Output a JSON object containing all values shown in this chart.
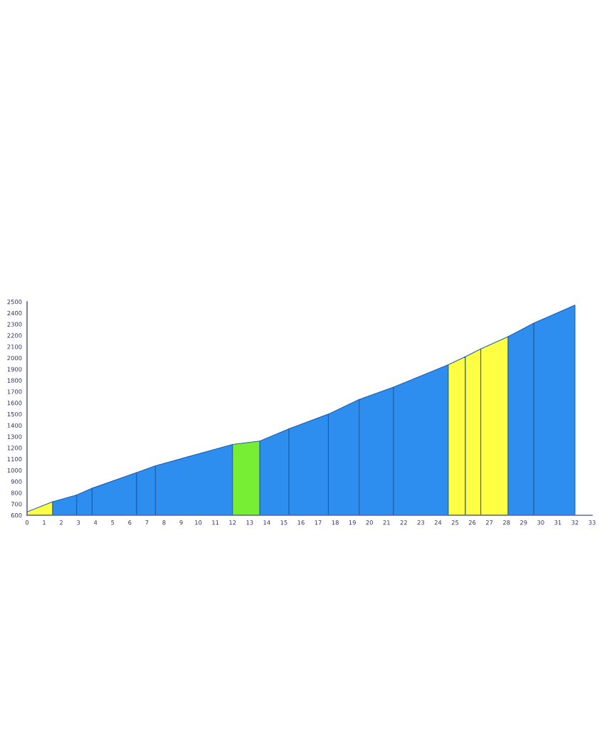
{
  "chart_data": {
    "type": "area",
    "xlim": [
      0,
      33
    ],
    "xticks": [
      0,
      1,
      2,
      3,
      4,
      5,
      6,
      7,
      8,
      9,
      10,
      11,
      12,
      13,
      14,
      15,
      16,
      17,
      18,
      19,
      20,
      21,
      22,
      23,
      24,
      25,
      26,
      27,
      28,
      29,
      30,
      31,
      32,
      33
    ],
    "ylim": [
      600,
      2500
    ],
    "yticks": [
      600,
      700,
      800,
      900,
      1000,
      1100,
      1200,
      1300,
      1400,
      1500,
      1600,
      1700,
      1800,
      1900,
      2000,
      2100,
      2200,
      2300,
      2400,
      2500
    ],
    "grid": false,
    "series": [
      {
        "color": "#ffff44",
        "x": [
          0,
          1.5
        ],
        "values": [
          630,
          720
        ]
      },
      {
        "color": "#2e8ef0",
        "x": [
          1.5,
          2.9
        ],
        "values": [
          720,
          780
        ]
      },
      {
        "color": "#2e8ef0",
        "x": [
          2.9,
          3.8
        ],
        "values": [
          780,
          840
        ]
      },
      {
        "color": "#2e8ef0",
        "x": [
          3.8,
          6.4
        ],
        "values": [
          840,
          980
        ]
      },
      {
        "color": "#2e8ef0",
        "x": [
          6.4,
          7.5
        ],
        "values": [
          980,
          1040
        ]
      },
      {
        "color": "#2e8ef0",
        "x": [
          7.5,
          12.0
        ],
        "values": [
          1040,
          1230
        ]
      },
      {
        "color": "#77ee33",
        "x": [
          12.0,
          13.6
        ],
        "values": [
          1230,
          1260
        ]
      },
      {
        "color": "#2e8ef0",
        "x": [
          13.6,
          15.3
        ],
        "values": [
          1260,
          1370
        ]
      },
      {
        "color": "#2e8ef0",
        "x": [
          15.3,
          17.6
        ],
        "values": [
          1370,
          1500
        ]
      },
      {
        "color": "#2e8ef0",
        "x": [
          17.6,
          19.4
        ],
        "values": [
          1500,
          1630
        ]
      },
      {
        "color": "#2e8ef0",
        "x": [
          19.4,
          21.4
        ],
        "values": [
          1630,
          1740
        ]
      },
      {
        "color": "#2e8ef0",
        "x": [
          21.4,
          24.6
        ],
        "values": [
          1740,
          1940
        ]
      },
      {
        "color": "#ffff44",
        "x": [
          24.6,
          25.6
        ],
        "values": [
          1940,
          2010
        ]
      },
      {
        "color": "#ffff44",
        "x": [
          25.6,
          26.5
        ],
        "values": [
          2010,
          2080
        ]
      },
      {
        "color": "#ffff44",
        "x": [
          26.5,
          28.1
        ],
        "values": [
          2080,
          2190
        ]
      },
      {
        "color": "#2e8ef0",
        "x": [
          28.1,
          29.6
        ],
        "values": [
          2190,
          2310
        ]
      },
      {
        "color": "#2e8ef0",
        "x": [
          29.6,
          32.0
        ],
        "values": [
          2310,
          2470
        ]
      }
    ]
  }
}
